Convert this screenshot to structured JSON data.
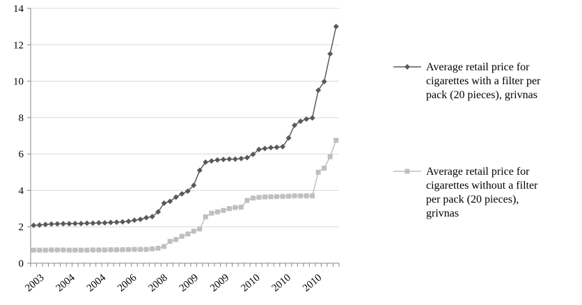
{
  "chart_data": {
    "type": "line",
    "title": "",
    "xlabel": "",
    "ylabel": "",
    "ylim": [
      0,
      14
    ],
    "yticks": [
      "0",
      "2",
      "4",
      "6",
      "8",
      "10",
      "12",
      "14"
    ],
    "xtick_labels": [
      "2003",
      "2004",
      "2004",
      "2006",
      "2008",
      "2009",
      "2009",
      "2010",
      "2010",
      "2010"
    ],
    "grid": "horizontal",
    "legend_position": "right",
    "series": [
      {
        "name": "Average retail price for cigarettes with a filter per pack (20 pieces), grivnas",
        "legend_lines": [
          "Average retail price for",
          "cigarettes with a filter per",
          "pack (20 pieces), grivnas"
        ],
        "color": "#595959",
        "marker": "diamond",
        "values": [
          2.08,
          2.1,
          2.13,
          2.15,
          2.16,
          2.17,
          2.17,
          2.18,
          2.18,
          2.2,
          2.2,
          2.22,
          2.22,
          2.24,
          2.25,
          2.27,
          2.3,
          2.36,
          2.41,
          2.5,
          2.56,
          2.82,
          3.3,
          3.4,
          3.63,
          3.81,
          3.96,
          4.28,
          5.1,
          5.55,
          5.62,
          5.67,
          5.7,
          5.72,
          5.72,
          5.75,
          5.8,
          5.98,
          6.25,
          6.3,
          6.35,
          6.37,
          6.4,
          6.88,
          7.58,
          7.8,
          7.92,
          7.98,
          9.5,
          9.98,
          11.5,
          13.0
        ]
      },
      {
        "name": "Average retail price for cigarettes without a filter per pack (20 pieces), grivnas",
        "legend_lines": [
          "Average retail price for",
          "cigarettes without a filter",
          "per pack (20 pieces),",
          "grivnas"
        ],
        "color": "#bfbfbf",
        "marker": "square",
        "values": [
          0.72,
          0.72,
          0.72,
          0.73,
          0.73,
          0.73,
          0.72,
          0.72,
          0.72,
          0.72,
          0.73,
          0.73,
          0.73,
          0.74,
          0.74,
          0.74,
          0.75,
          0.76,
          0.76,
          0.76,
          0.79,
          0.82,
          0.92,
          1.2,
          1.3,
          1.48,
          1.61,
          1.76,
          1.88,
          2.55,
          2.75,
          2.82,
          2.9,
          3.0,
          3.06,
          3.08,
          3.45,
          3.58,
          3.62,
          3.64,
          3.65,
          3.66,
          3.67,
          3.68,
          3.7,
          3.7,
          3.7,
          3.7,
          5.0,
          5.22,
          5.85,
          6.75
        ]
      }
    ]
  }
}
